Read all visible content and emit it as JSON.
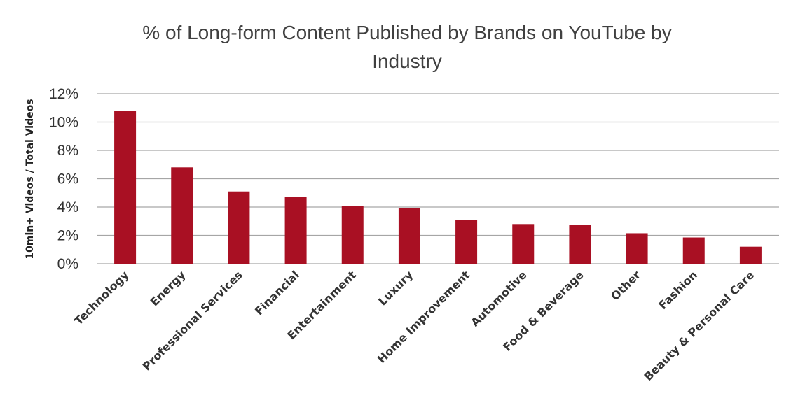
{
  "chart_data": {
    "type": "bar",
    "title": "% of Long-form Content Published by Brands on YouTube by Industry",
    "title_lines": [
      "% of Long-form Content Published by Brands on YouTube by",
      "Industry"
    ],
    "xlabel": "",
    "ylabel": "10min+ Videos / Total Videos",
    "ylim": [
      0,
      12
    ],
    "yticks": [
      0,
      2,
      4,
      6,
      8,
      10,
      12
    ],
    "ytick_labels": [
      "0%",
      "2%",
      "4%",
      "6%",
      "8%",
      "10%",
      "12%"
    ],
    "grid": true,
    "legend": "none",
    "categories": [
      "Technology",
      "Energy",
      "Professional Services",
      "Financial",
      "Entertainment",
      "Luxury",
      "Home Improvement",
      "Automotive",
      "Food & Beverage",
      "Other",
      "Fashion",
      "Beauty & Personal Care"
    ],
    "values": [
      10.8,
      6.8,
      5.1,
      4.7,
      4.05,
      3.95,
      3.1,
      2.8,
      2.75,
      2.15,
      1.85,
      1.2
    ],
    "bar_color": "#a91023",
    "grid_color": "#a6a6a6"
  }
}
